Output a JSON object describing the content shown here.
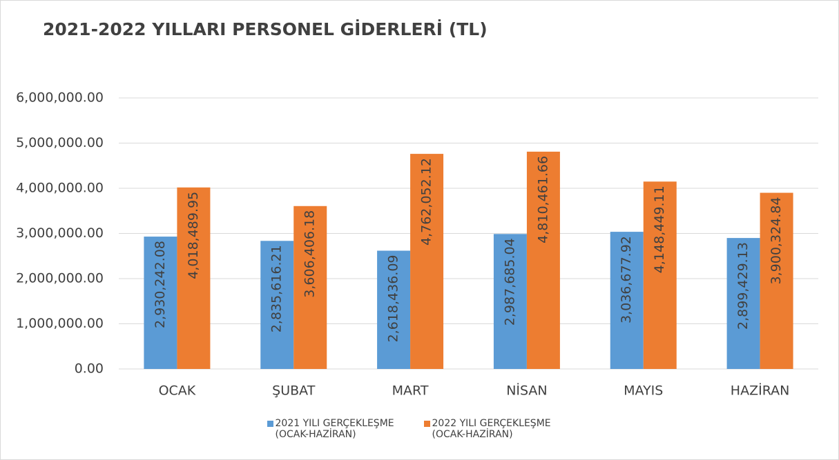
{
  "chart_data": {
    "type": "bar",
    "title": "2021-2022 YILLARI PERSONEL GİDERLERİ (TL)",
    "categories": [
      "OCAK",
      "ŞUBAT",
      "MART",
      "NİSAN",
      "MAYIS",
      "HAZİRAN"
    ],
    "series": [
      {
        "name": "2021 YILI GERÇEKLEŞME (OCAK-HAZİRAN)",
        "color": "#5b9bd5",
        "values": [
          2930242.08,
          2835616.21,
          2618436.09,
          2987685.04,
          3036677.92,
          2899429.13
        ],
        "value_labels": [
          "2,930,242.08",
          "2,835,616.21",
          "2,618,436.09",
          "2,987,685.04",
          "3,036,677.92",
          "2,899,429.13"
        ]
      },
      {
        "name": "2022 YILI GERÇEKLEŞME (OCAK-HAZİRAN)",
        "color": "#ed7d31",
        "values": [
          4018489.95,
          3606406.18,
          4762052.12,
          4810461.66,
          4148449.11,
          3900324.84
        ],
        "value_labels": [
          "4,018,489.95",
          "3,606,406.18",
          "4,762,052.12",
          "4,810,461.66",
          "4,148,449.11",
          "3,900,324.84"
        ]
      }
    ],
    "ylim": [
      0,
      6000000
    ],
    "yticks": [
      {
        "value": 0,
        "label": "0.00"
      },
      {
        "value": 1000000,
        "label": "1,000,000.00"
      },
      {
        "value": 2000000,
        "label": "2,000,000.00"
      },
      {
        "value": 3000000,
        "label": "3,000,000.00"
      },
      {
        "value": 4000000,
        "label": "4,000,000.00"
      },
      {
        "value": 5000000,
        "label": "5,000,000.00"
      },
      {
        "value": 6000000,
        "label": "6,000,000.00"
      }
    ],
    "grid": true,
    "legend": "bottom"
  }
}
